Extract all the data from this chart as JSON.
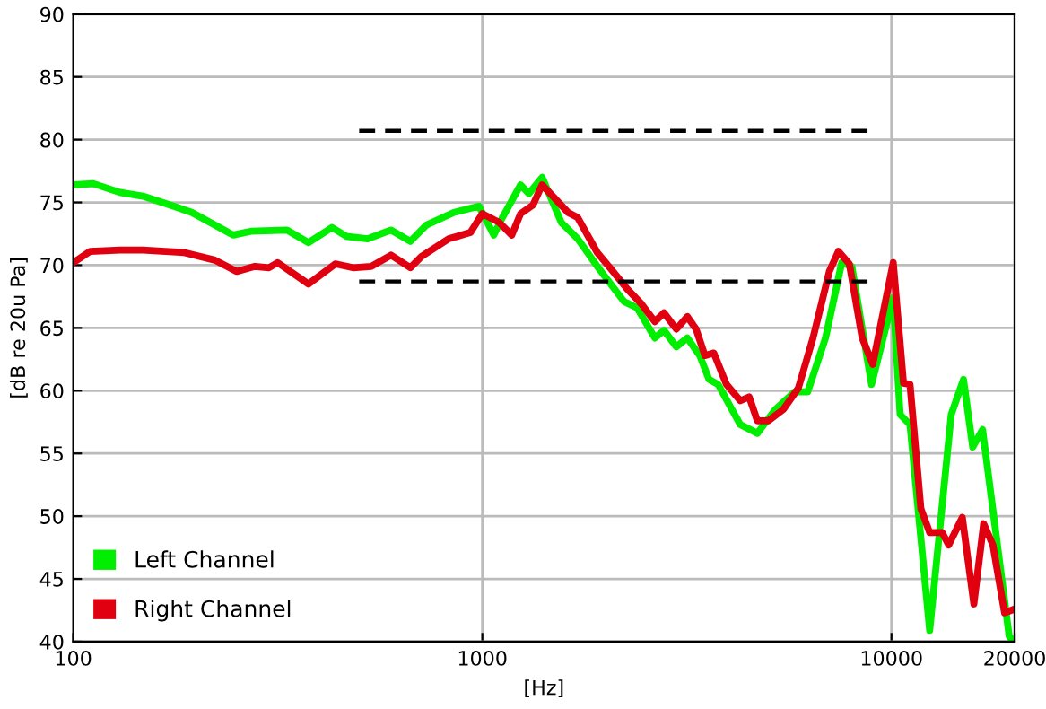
{
  "chart_data": {
    "type": "line",
    "xlabel": "[Hz]",
    "ylabel": "[dB re 20u Pa]",
    "log": "x",
    "xlim": [
      100,
      20000
    ],
    "xticks": [
      100,
      1000,
      10000,
      20000
    ],
    "ylim": [
      40,
      90
    ],
    "yticks": [
      40,
      45,
      50,
      55,
      60,
      65,
      70,
      75,
      80,
      85,
      90
    ],
    "grid": true,
    "legend": "bottom left",
    "line_style": "solid",
    "marker": "none",
    "series": [
      {
        "name": "Left Channel",
        "color": "#00ee00",
        "x": [
          100,
          112,
          130,
          148,
          176,
          195,
          246,
          272,
          333,
          376,
          429,
          465,
          524,
          598,
          667,
          730,
          852,
          981,
          1067,
          1120,
          1240,
          1300,
          1400,
          1560,
          1710,
          1910,
          2220,
          2390,
          2640,
          2780,
          2980,
          3170,
          3400,
          3580,
          3770,
          4270,
          4700,
          5200,
          5800,
          6240,
          6900,
          7560,
          8000,
          8940,
          10100,
          10500,
          11100,
          12400,
          14000,
          15000,
          15800,
          16700,
          19400,
          20000
        ],
        "values": [
          76.4,
          76.5,
          75.8,
          75.5,
          74.7,
          74.2,
          72.4,
          72.7,
          72.8,
          71.8,
          73.0,
          72.3,
          72.1,
          72.8,
          71.9,
          73.2,
          74.2,
          74.7,
          72.4,
          73.8,
          76.4,
          75.7,
          77.0,
          73.4,
          72.1,
          69.9,
          67.1,
          66.6,
          64.2,
          64.8,
          63.5,
          64.2,
          62.8,
          60.9,
          60.5,
          57.3,
          56.6,
          58.5,
          59.9,
          59.9,
          64.2,
          70.2,
          69.9,
          60.5,
          67.4,
          58.1,
          57.3,
          40.9,
          58.1,
          60.9,
          55.5,
          56.9,
          40.4,
          40.0
        ]
      },
      {
        "name": "Right Channel",
        "color": "#e00010",
        "x": [
          100,
          110,
          130,
          148,
          187,
          222,
          251,
          278,
          301,
          316,
          376,
          437,
          483,
          535,
          598,
          667,
          710,
          828,
          935,
          1000,
          1100,
          1180,
          1240,
          1330,
          1400,
          1620,
          1710,
          1910,
          2050,
          2260,
          2450,
          2640,
          2780,
          2980,
          3170,
          3330,
          3500,
          3680,
          3950,
          4270,
          4490,
          4700,
          5000,
          5440,
          5920,
          6430,
          7050,
          7420,
          7890,
          8480,
          9000,
          10100,
          10700,
          11100,
          11800,
          12400,
          13300,
          13800,
          14900,
          15900,
          16800,
          17700,
          18900,
          20000
        ],
        "values": [
          70.2,
          71.1,
          71.2,
          71.2,
          71.0,
          70.4,
          69.5,
          69.9,
          69.8,
          70.2,
          68.5,
          70.1,
          69.8,
          69.9,
          70.8,
          69.8,
          70.7,
          72.1,
          72.6,
          74.1,
          73.4,
          72.4,
          74.1,
          74.8,
          76.4,
          74.2,
          73.8,
          71.0,
          69.8,
          68.1,
          66.9,
          65.5,
          66.2,
          64.9,
          65.9,
          64.9,
          62.8,
          63.0,
          60.5,
          59.2,
          59.5,
          57.6,
          57.6,
          58.5,
          60.2,
          64.2,
          69.5,
          71.1,
          70.1,
          64.2,
          62.1,
          70.2,
          60.6,
          60.5,
          50.6,
          48.7,
          48.7,
          47.7,
          49.9,
          43.0,
          49.4,
          47.7,
          42.3,
          42.6
        ]
      },
      {
        "color": "#000000",
        "line_style": "dashed",
        "x": [
          500,
          9000
        ],
        "values": [
          80.7,
          80.7
        ]
      },
      {
        "color": "#000000",
        "line_style": "dashed",
        "x": [
          500,
          9000
        ],
        "values": [
          68.7,
          68.7
        ]
      }
    ]
  }
}
